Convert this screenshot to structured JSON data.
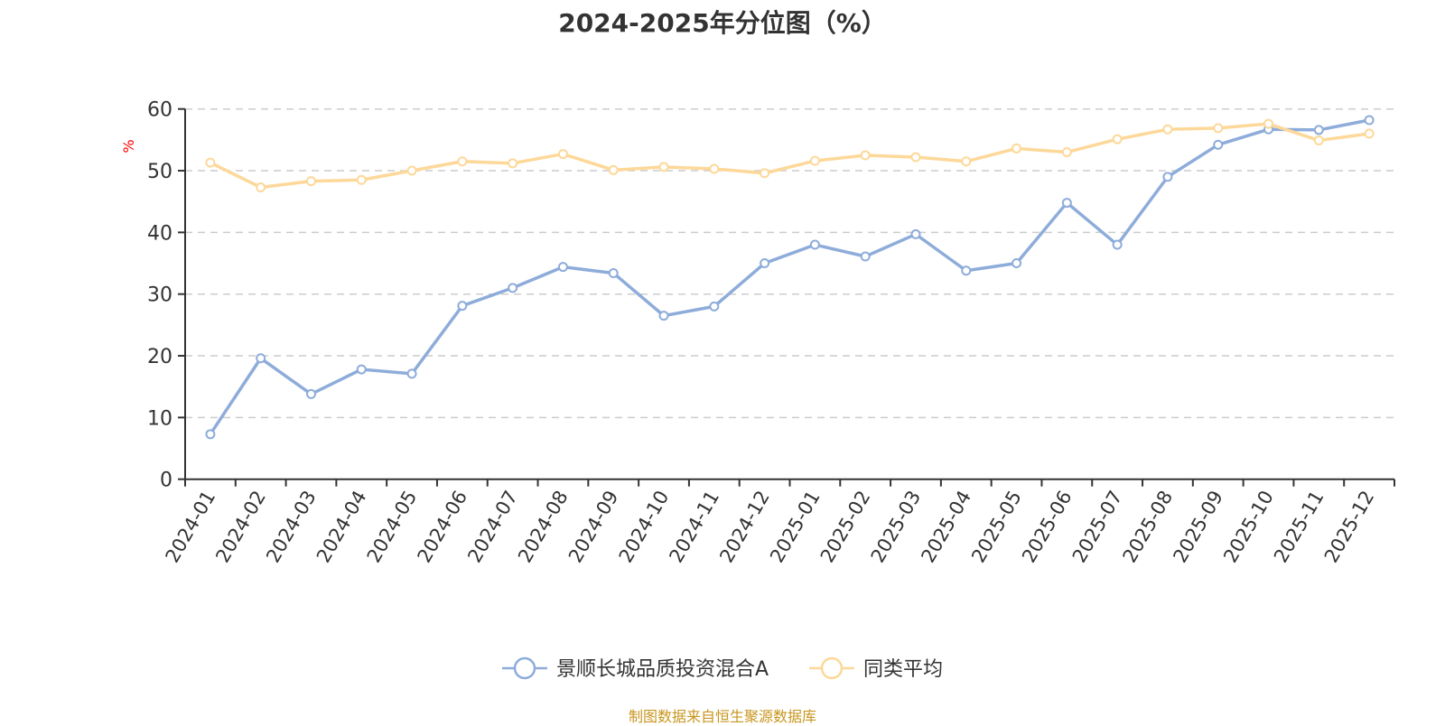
{
  "chart_data": {
    "type": "line",
    "title": "2024-2025年分位图（%）",
    "ylabel": "%",
    "xlabel": "",
    "ylim": [
      0,
      60
    ],
    "yticks": [
      0,
      10,
      20,
      30,
      40,
      50,
      60
    ],
    "grid": true,
    "legend_position": "bottom-center",
    "categories": [
      "2024-01",
      "2024-02",
      "2024-03",
      "2024-04",
      "2024-05",
      "2024-06",
      "2024-07",
      "2024-08",
      "2024-09",
      "2024-10",
      "2024-11",
      "2024-12",
      "2025-01",
      "2025-02",
      "2025-03",
      "2025-04",
      "2025-05",
      "2025-06",
      "2025-07",
      "2025-08",
      "2025-09",
      "2025-10",
      "2025-11",
      "2025-12"
    ],
    "series": [
      {
        "name": "景顺长城品质投资混合A",
        "color": "#8eacda",
        "values": [
          7.3,
          19.6,
          13.8,
          17.8,
          17.1,
          28.1,
          31.0,
          34.4,
          33.4,
          26.5,
          28.0,
          35.0,
          38.0,
          36.1,
          39.7,
          33.8,
          35.0,
          44.8,
          38.0,
          49.0,
          54.2,
          56.7,
          56.6,
          58.2
        ]
      },
      {
        "name": "同类平均",
        "color": "#fdd899",
        "values": [
          51.3,
          47.3,
          48.3,
          48.5,
          50.0,
          51.5,
          51.2,
          52.7,
          50.1,
          50.6,
          50.3,
          49.6,
          51.6,
          52.5,
          52.2,
          51.5,
          53.6,
          53.0,
          55.1,
          56.7,
          56.9,
          57.6,
          54.9,
          56.0
        ]
      }
    ]
  },
  "footer": "制图数据来自恒生聚源数据库"
}
